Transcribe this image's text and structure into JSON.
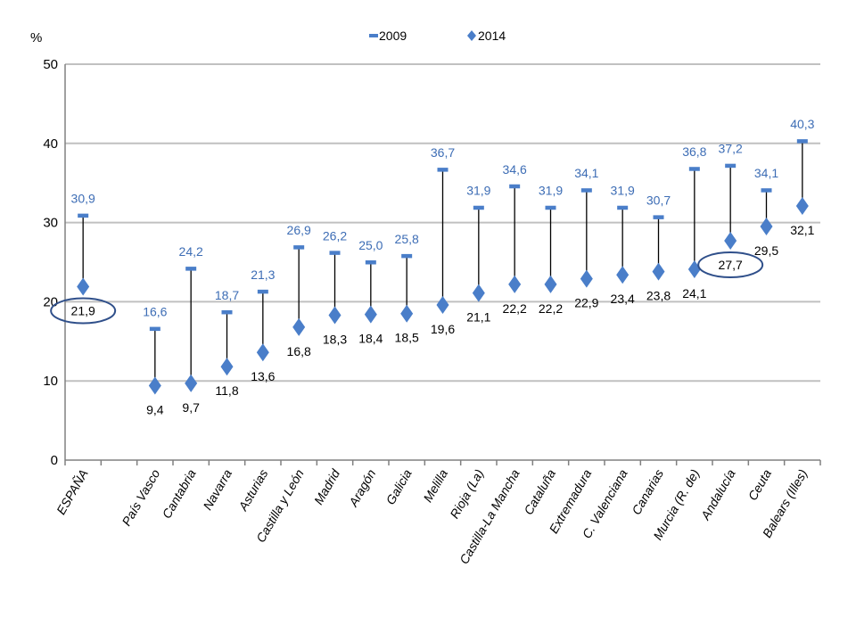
{
  "chart_data": {
    "type": "dot-range",
    "ylabel": "%",
    "ylim": [
      0,
      50
    ],
    "yticks": [
      "0",
      "10",
      "20",
      "30",
      "40",
      "50"
    ],
    "grid": true,
    "legend_position": "top-center",
    "categories": [
      "ESPAÑA",
      "País Vasco",
      "Cantabria",
      "Navarra",
      "Asturias",
      "Castilla y León",
      "Madrid",
      "Aragón",
      "Galicia",
      "Melilla",
      "Rioja (La)",
      "Castilla-La Mancha",
      "Cataluña",
      "Extremadura",
      "C. Valenciana",
      "Canarias",
      "Murcia (R. de)",
      "Andalucía",
      "Ceuta",
      "Balears (Illes)"
    ],
    "series": [
      {
        "name": "2009",
        "values": [
          30.9,
          16.6,
          24.2,
          18.7,
          21.3,
          26.9,
          26.2,
          25.0,
          25.8,
          36.7,
          31.9,
          34.6,
          31.9,
          34.1,
          31.9,
          30.7,
          36.8,
          37.2,
          34.1,
          40.3
        ],
        "labels": [
          "30,9",
          "16,6",
          "24,2",
          "18,7",
          "21,3",
          "26,9",
          "26,2",
          "25,0",
          "25,8",
          "36,7",
          "31,9",
          "34,6",
          "31,9",
          "34,1",
          "31,9",
          "30,7",
          "36,8",
          "37,2",
          "34,1",
          "40,3"
        ],
        "color": "#4a7ec9"
      },
      {
        "name": "2014",
        "values": [
          21.9,
          9.4,
          9.7,
          11.8,
          13.6,
          16.8,
          18.3,
          18.4,
          18.5,
          19.6,
          21.1,
          22.2,
          22.2,
          22.9,
          23.4,
          23.8,
          24.1,
          27.7,
          29.5,
          32.1
        ],
        "labels": [
          "21,9",
          "9,4",
          "9,7",
          "11,8",
          "13,6",
          "16,8",
          "18,3",
          "18,4",
          "18,5",
          "19,6",
          "21,1",
          "22,2",
          "22,2",
          "22,9",
          "23,4",
          "23,8",
          "24,1",
          "27,7",
          "29,5",
          "32,1"
        ],
        "color": "#4a7ec9"
      }
    ],
    "highlighted": [
      "ESPAÑA",
      "Andalucía"
    ]
  }
}
